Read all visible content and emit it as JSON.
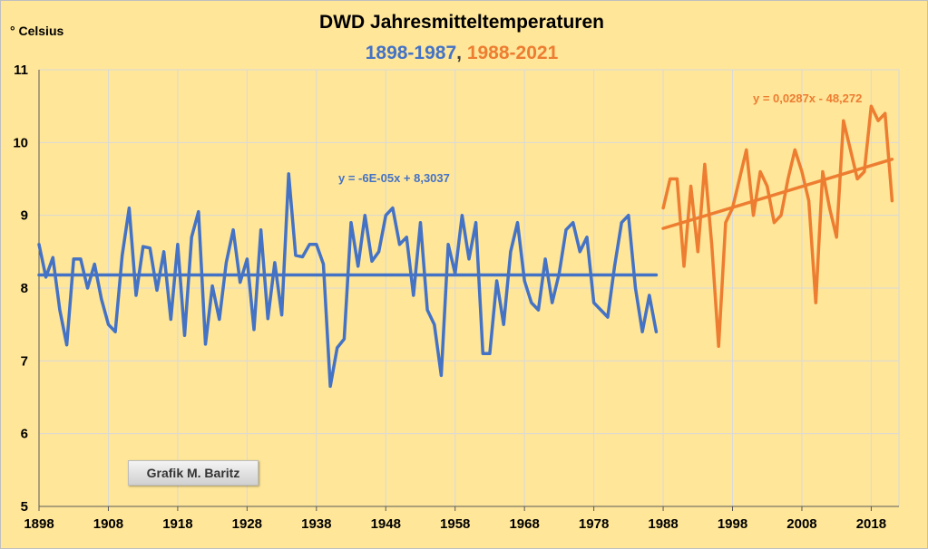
{
  "chart_data": {
    "type": "line",
    "title": "DWD Jahresmitteltemperaturen",
    "subtitle_parts": [
      {
        "text": "1898-1987",
        "color": "#4472c4"
      },
      {
        "text": ", ",
        "color": "#404040"
      },
      {
        "text": "1988-2021",
        "color": "#ed7d31"
      }
    ],
    "ylabel": "° Celsius",
    "xlim": [
      1898,
      2022
    ],
    "ylim": [
      5,
      11
    ],
    "x_ticks": [
      1898,
      1908,
      1918,
      1928,
      1938,
      1948,
      1958,
      1968,
      1978,
      1988,
      1998,
      2008,
      2018
    ],
    "y_ticks": [
      5,
      6,
      7,
      8,
      9,
      10,
      11
    ],
    "grid": true,
    "series": [
      {
        "color": "#4472c4",
        "x_start": 1898,
        "values": [
          8.6,
          8.15,
          8.42,
          7.7,
          7.22,
          8.4,
          8.4,
          8.0,
          8.33,
          7.85,
          7.5,
          7.4,
          8.45,
          9.1,
          7.9,
          8.57,
          8.55,
          7.97,
          8.5,
          7.57,
          8.6,
          7.35,
          8.7,
          9.05,
          7.23,
          8.03,
          7.57,
          8.35,
          8.8,
          8.08,
          8.4,
          7.43,
          8.8,
          7.58,
          8.35,
          7.63,
          9.57,
          8.45,
          8.43,
          8.6,
          8.6,
          8.33,
          6.65,
          7.18,
          7.3,
          8.9,
          8.3,
          9.0,
          8.37,
          8.5,
          9.0,
          9.1,
          8.6,
          8.7,
          7.9,
          8.9,
          7.7,
          7.5,
          6.8,
          8.6,
          8.2,
          9.0,
          8.4,
          8.9,
          7.1,
          7.1,
          8.1,
          7.5,
          8.5,
          8.9,
          8.1,
          7.8,
          7.7,
          8.4,
          7.8,
          8.2,
          8.8,
          8.9,
          8.5,
          8.7,
          7.8,
          7.7,
          7.6,
          8.3,
          8.9,
          9.0,
          8.0,
          7.4,
          7.9,
          7.4
        ]
      },
      {
        "color": "#ed7d31",
        "x_start": 1988,
        "values": [
          9.1,
          9.5,
          9.5,
          8.3,
          9.4,
          8.5,
          9.7,
          8.6,
          7.2,
          8.9,
          9.1,
          9.5,
          9.9,
          9.0,
          9.6,
          9.4,
          8.9,
          9.0,
          9.5,
          9.9,
          9.6,
          9.2,
          7.8,
          9.6,
          9.1,
          8.7,
          10.3,
          9.9,
          9.5,
          9.6,
          10.5,
          10.3,
          10.4,
          9.2
        ]
      }
    ],
    "trendlines": [
      {
        "equation": "y = -6E-05x + 8,3037",
        "color": "#4472c4",
        "x": [
          1898,
          1987
        ],
        "y": [
          8.18,
          8.18
        ]
      },
      {
        "equation": "y = 0,0287x - 48,272",
        "color": "#ed7d31",
        "x": [
          1988,
          2021
        ],
        "y": [
          8.82,
          9.77
        ]
      }
    ],
    "credit": "Grafik M. Baritz"
  }
}
